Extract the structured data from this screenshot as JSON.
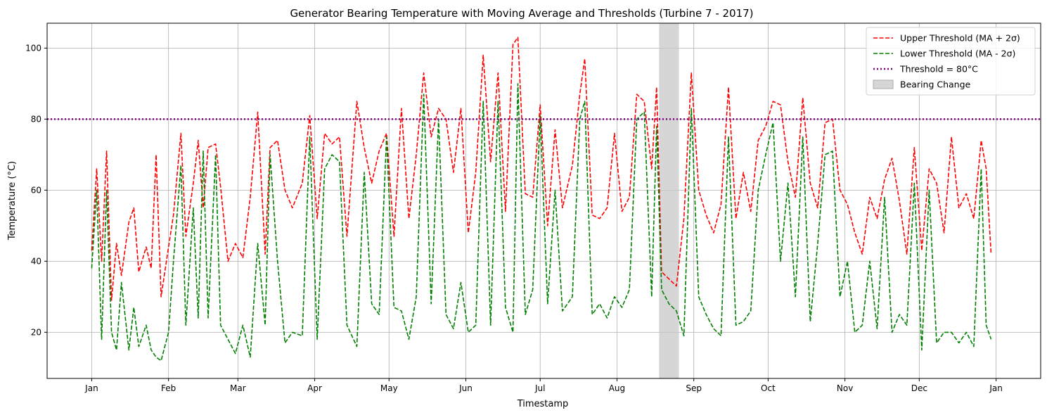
{
  "chart_data": {
    "type": "line",
    "title": "Generator Bearing Temperature with Moving Average and Thresholds (Turbine 7 - 2017)",
    "xlabel": "Timestamp",
    "ylabel": "Temperature (°C)",
    "xlim": [
      "2016-12-14",
      "2018-01-19"
    ],
    "ylim": [
      7,
      107
    ],
    "grid": true,
    "legend_position": "top-right",
    "x_ticks": [
      {
        "date": "2017-01-01",
        "label": "Jan"
      },
      {
        "date": "2017-02-01",
        "label": "Feb"
      },
      {
        "date": "2017-03-01",
        "label": "Mar"
      },
      {
        "date": "2017-04-01",
        "label": "Apr"
      },
      {
        "date": "2017-05-01",
        "label": "May"
      },
      {
        "date": "2017-06-01",
        "label": "Jun"
      },
      {
        "date": "2017-07-01",
        "label": "Jul"
      },
      {
        "date": "2017-08-01",
        "label": "Aug"
      },
      {
        "date": "2017-09-01",
        "label": "Sep"
      },
      {
        "date": "2017-10-01",
        "label": "Oct"
      },
      {
        "date": "2017-11-01",
        "label": "Nov"
      },
      {
        "date": "2017-12-01",
        "label": "Dec"
      },
      {
        "date": "2018-01-01",
        "label": "Jan"
      }
    ],
    "y_ticks": [
      20,
      40,
      60,
      80,
      100
    ],
    "series": [
      {
        "name": "Upper Threshold (MA + 2σ)",
        "color": "#ff0000",
        "style": "dashed",
        "points": [
          [
            "2017-01-01",
            43
          ],
          [
            "2017-01-03",
            66
          ],
          [
            "2017-01-05",
            40
          ],
          [
            "2017-01-07",
            71
          ],
          [
            "2017-01-09",
            29
          ],
          [
            "2017-01-11",
            45
          ],
          [
            "2017-01-13",
            36
          ],
          [
            "2017-01-16",
            51
          ],
          [
            "2017-01-18",
            55
          ],
          [
            "2017-01-20",
            37
          ],
          [
            "2017-01-23",
            44
          ],
          [
            "2017-01-25",
            38
          ],
          [
            "2017-01-27",
            70
          ],
          [
            "2017-01-29",
            30
          ],
          [
            "2017-02-01",
            44
          ],
          [
            "2017-02-03",
            53
          ],
          [
            "2017-02-06",
            76
          ],
          [
            "2017-02-08",
            47
          ],
          [
            "2017-02-11",
            62
          ],
          [
            "2017-02-13",
            74
          ],
          [
            "2017-02-15",
            55
          ],
          [
            "2017-02-17",
            72
          ],
          [
            "2017-02-20",
            73
          ],
          [
            "2017-02-22",
            61
          ],
          [
            "2017-02-25",
            40
          ],
          [
            "2017-02-28",
            45
          ],
          [
            "2017-03-03",
            41
          ],
          [
            "2017-03-06",
            58
          ],
          [
            "2017-03-09",
            82
          ],
          [
            "2017-03-12",
            42
          ],
          [
            "2017-03-14",
            72
          ],
          [
            "2017-03-17",
            74
          ],
          [
            "2017-03-20",
            60
          ],
          [
            "2017-03-23",
            55
          ],
          [
            "2017-03-27",
            62
          ],
          [
            "2017-03-30",
            81
          ],
          [
            "2017-04-02",
            52
          ],
          [
            "2017-04-05",
            76
          ],
          [
            "2017-04-08",
            73
          ],
          [
            "2017-04-11",
            75
          ],
          [
            "2017-04-14",
            47
          ],
          [
            "2017-04-18",
            85
          ],
          [
            "2017-04-21",
            72
          ],
          [
            "2017-04-24",
            62
          ],
          [
            "2017-04-27",
            71
          ],
          [
            "2017-04-30",
            76
          ],
          [
            "2017-05-03",
            47
          ],
          [
            "2017-05-06",
            83
          ],
          [
            "2017-05-09",
            52
          ],
          [
            "2017-05-12",
            70
          ],
          [
            "2017-05-15",
            93
          ],
          [
            "2017-05-18",
            75
          ],
          [
            "2017-05-21",
            83
          ],
          [
            "2017-05-24",
            80
          ],
          [
            "2017-05-27",
            65
          ],
          [
            "2017-05-30",
            83
          ],
          [
            "2017-06-02",
            48
          ],
          [
            "2017-06-05",
            65
          ],
          [
            "2017-06-08",
            98
          ],
          [
            "2017-06-11",
            68
          ],
          [
            "2017-06-14",
            93
          ],
          [
            "2017-06-17",
            54
          ],
          [
            "2017-06-20",
            101
          ],
          [
            "2017-06-22",
            103
          ],
          [
            "2017-06-25",
            59
          ],
          [
            "2017-06-28",
            58
          ],
          [
            "2017-07-01",
            84
          ],
          [
            "2017-07-04",
            50
          ],
          [
            "2017-07-07",
            77
          ],
          [
            "2017-07-10",
            55
          ],
          [
            "2017-07-14",
            67
          ],
          [
            "2017-07-17",
            87
          ],
          [
            "2017-07-19",
            97
          ],
          [
            "2017-07-22",
            53
          ],
          [
            "2017-07-25",
            52
          ],
          [
            "2017-07-28",
            55
          ],
          [
            "2017-07-31",
            76
          ],
          [
            "2017-08-03",
            54
          ],
          [
            "2017-08-06",
            58
          ],
          [
            "2017-08-09",
            87
          ],
          [
            "2017-08-12",
            85
          ],
          [
            "2017-08-15",
            66
          ],
          [
            "2017-08-17",
            89
          ],
          [
            "2017-08-19",
            37
          ],
          [
            "2017-08-22",
            35
          ],
          [
            "2017-08-25",
            33
          ],
          [
            "2017-08-28",
            52
          ],
          [
            "2017-08-31",
            93
          ],
          [
            "2017-09-03",
            60
          ],
          [
            "2017-09-06",
            53
          ],
          [
            "2017-09-09",
            48
          ],
          [
            "2017-09-12",
            56
          ],
          [
            "2017-09-15",
            89
          ],
          [
            "2017-09-18",
            52
          ],
          [
            "2017-09-21",
            65
          ],
          [
            "2017-09-24",
            54
          ],
          [
            "2017-09-27",
            74
          ],
          [
            "2017-09-30",
            78
          ],
          [
            "2017-10-03",
            85
          ],
          [
            "2017-10-06",
            84
          ],
          [
            "2017-10-09",
            68
          ],
          [
            "2017-10-12",
            58
          ],
          [
            "2017-10-15",
            86
          ],
          [
            "2017-10-18",
            62
          ],
          [
            "2017-10-21",
            55
          ],
          [
            "2017-10-24",
            79
          ],
          [
            "2017-10-27",
            80
          ],
          [
            "2017-10-30",
            60
          ],
          [
            "2017-11-02",
            56
          ],
          [
            "2017-11-05",
            48
          ],
          [
            "2017-11-08",
            42
          ],
          [
            "2017-11-11",
            58
          ],
          [
            "2017-11-14",
            52
          ],
          [
            "2017-11-17",
            63
          ],
          [
            "2017-11-20",
            69
          ],
          [
            "2017-11-23",
            57
          ],
          [
            "2017-11-26",
            42
          ],
          [
            "2017-11-29",
            72
          ],
          [
            "2017-12-02",
            43
          ],
          [
            "2017-12-05",
            66
          ],
          [
            "2017-12-08",
            62
          ],
          [
            "2017-12-11",
            48
          ],
          [
            "2017-12-14",
            75
          ],
          [
            "2017-12-17",
            55
          ],
          [
            "2017-12-20",
            59
          ],
          [
            "2017-12-23",
            52
          ],
          [
            "2017-12-26",
            74
          ],
          [
            "2017-12-28",
            66
          ],
          [
            "2017-12-30",
            42
          ]
        ]
      },
      {
        "name": "Lower Threshold (MA - 2σ)",
        "color": "#008000",
        "style": "dashed",
        "points": [
          [
            "2017-01-01",
            38
          ],
          [
            "2017-01-03",
            60
          ],
          [
            "2017-01-05",
            18
          ],
          [
            "2017-01-07",
            60
          ],
          [
            "2017-01-09",
            20
          ],
          [
            "2017-01-11",
            15
          ],
          [
            "2017-01-13",
            34
          ],
          [
            "2017-01-16",
            15
          ],
          [
            "2017-01-18",
            27
          ],
          [
            "2017-01-20",
            16
          ],
          [
            "2017-01-23",
            22
          ],
          [
            "2017-01-25",
            15
          ],
          [
            "2017-01-27",
            13
          ],
          [
            "2017-01-29",
            12
          ],
          [
            "2017-02-01",
            20
          ],
          [
            "2017-02-03",
            40
          ],
          [
            "2017-02-06",
            67
          ],
          [
            "2017-02-08",
            22
          ],
          [
            "2017-02-11",
            55
          ],
          [
            "2017-02-13",
            24
          ],
          [
            "2017-02-15",
            71
          ],
          [
            "2017-02-17",
            24
          ],
          [
            "2017-02-20",
            70
          ],
          [
            "2017-02-22",
            22
          ],
          [
            "2017-02-25",
            18
          ],
          [
            "2017-02-28",
            14
          ],
          [
            "2017-03-03",
            22
          ],
          [
            "2017-03-06",
            13
          ],
          [
            "2017-03-09",
            45
          ],
          [
            "2017-03-12",
            22
          ],
          [
            "2017-03-14",
            70
          ],
          [
            "2017-03-17",
            40
          ],
          [
            "2017-03-20",
            17
          ],
          [
            "2017-03-23",
            20
          ],
          [
            "2017-03-27",
            19
          ],
          [
            "2017-03-30",
            75
          ],
          [
            "2017-04-02",
            18
          ],
          [
            "2017-04-05",
            66
          ],
          [
            "2017-04-08",
            70
          ],
          [
            "2017-04-11",
            68
          ],
          [
            "2017-04-14",
            22
          ],
          [
            "2017-04-18",
            16
          ],
          [
            "2017-04-21",
            65
          ],
          [
            "2017-04-24",
            28
          ],
          [
            "2017-04-27",
            25
          ],
          [
            "2017-04-30",
            75
          ],
          [
            "2017-05-03",
            27
          ],
          [
            "2017-05-06",
            26
          ],
          [
            "2017-05-09",
            18
          ],
          [
            "2017-05-12",
            30
          ],
          [
            "2017-05-15",
            87
          ],
          [
            "2017-05-18",
            28
          ],
          [
            "2017-05-21",
            80
          ],
          [
            "2017-05-24",
            25
          ],
          [
            "2017-05-27",
            21
          ],
          [
            "2017-05-30",
            34
          ],
          [
            "2017-06-02",
            20
          ],
          [
            "2017-06-05",
            22
          ],
          [
            "2017-06-08",
            85
          ],
          [
            "2017-06-11",
            22
          ],
          [
            "2017-06-14",
            85
          ],
          [
            "2017-06-17",
            27
          ],
          [
            "2017-06-20",
            20
          ],
          [
            "2017-06-22",
            90
          ],
          [
            "2017-06-25",
            25
          ],
          [
            "2017-06-28",
            32
          ],
          [
            "2017-07-01",
            81
          ],
          [
            "2017-07-04",
            28
          ],
          [
            "2017-07-07",
            60
          ],
          [
            "2017-07-10",
            26
          ],
          [
            "2017-07-14",
            30
          ],
          [
            "2017-07-17",
            80
          ],
          [
            "2017-07-19",
            85
          ],
          [
            "2017-07-22",
            25
          ],
          [
            "2017-07-25",
            28
          ],
          [
            "2017-07-28",
            24
          ],
          [
            "2017-07-31",
            30
          ],
          [
            "2017-08-03",
            27
          ],
          [
            "2017-08-06",
            32
          ],
          [
            "2017-08-09",
            80
          ],
          [
            "2017-08-12",
            82
          ],
          [
            "2017-08-15",
            30
          ],
          [
            "2017-08-17",
            78
          ],
          [
            "2017-08-19",
            32
          ],
          [
            "2017-08-22",
            28
          ],
          [
            "2017-08-25",
            26
          ],
          [
            "2017-08-28",
            19
          ],
          [
            "2017-08-31",
            83
          ],
          [
            "2017-09-03",
            30
          ],
          [
            "2017-09-06",
            25
          ],
          [
            "2017-09-09",
            21
          ],
          [
            "2017-09-12",
            19
          ],
          [
            "2017-09-15",
            75
          ],
          [
            "2017-09-18",
            22
          ],
          [
            "2017-09-21",
            23
          ],
          [
            "2017-09-24",
            26
          ],
          [
            "2017-09-27",
            60
          ],
          [
            "2017-09-30",
            70
          ],
          [
            "2017-10-03",
            79
          ],
          [
            "2017-10-06",
            40
          ],
          [
            "2017-10-09",
            62
          ],
          [
            "2017-10-12",
            30
          ],
          [
            "2017-10-15",
            75
          ],
          [
            "2017-10-18",
            23
          ],
          [
            "2017-10-21",
            45
          ],
          [
            "2017-10-24",
            70
          ],
          [
            "2017-10-27",
            71
          ],
          [
            "2017-10-30",
            30
          ],
          [
            "2017-11-02",
            40
          ],
          [
            "2017-11-05",
            20
          ],
          [
            "2017-11-08",
            22
          ],
          [
            "2017-11-11",
            40
          ],
          [
            "2017-11-14",
            21
          ],
          [
            "2017-11-17",
            58
          ],
          [
            "2017-11-20",
            20
          ],
          [
            "2017-11-23",
            25
          ],
          [
            "2017-11-26",
            22
          ],
          [
            "2017-11-29",
            62
          ],
          [
            "2017-12-02",
            15
          ],
          [
            "2017-12-05",
            60
          ],
          [
            "2017-12-08",
            17
          ],
          [
            "2017-12-11",
            20
          ],
          [
            "2017-12-14",
            20
          ],
          [
            "2017-12-17",
            17
          ],
          [
            "2017-12-20",
            20
          ],
          [
            "2017-12-23",
            16
          ],
          [
            "2017-12-26",
            66
          ],
          [
            "2017-12-28",
            22
          ],
          [
            "2017-12-30",
            18
          ]
        ]
      },
      {
        "name": "Threshold = 80°C",
        "color": "#800080",
        "style": "dotted",
        "constant_y": 80
      }
    ],
    "shaded_regions": [
      {
        "name": "Bearing Change",
        "x_start": "2017-08-18",
        "x_end": "2017-08-26",
        "color": "#c8c8c8"
      }
    ]
  }
}
